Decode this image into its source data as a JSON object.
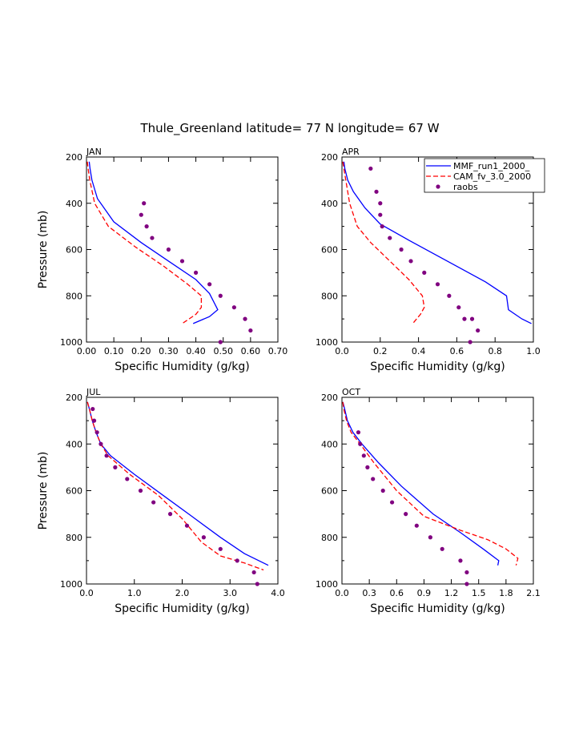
{
  "title": "Thule_Greenland  latitude= 77 N longitude= 67 W",
  "legend": {
    "placement": "top-right of APR panel",
    "entries": [
      {
        "label": "MMF_run1_2000_",
        "color": "#0000ff",
        "style": "solid"
      },
      {
        "label": "CAM_fv_3.0_2000",
        "color": "#ff0000",
        "style": "dashed"
      },
      {
        "label": "raobs",
        "color": "#800080",
        "style": "dots"
      }
    ]
  },
  "colors": {
    "mmf": "#0000ff",
    "cam": "#ff0000",
    "raobs": "#800080"
  },
  "chart_data": [
    {
      "type": "line",
      "label": "JAN",
      "xlabel": "Specific Humidity (g/kg)",
      "ylabel": "Pressure (mb)",
      "xlim": [
        0,
        0.7
      ],
      "ylim": [
        200,
        1000
      ],
      "xticks": [
        "0.00",
        "0.10",
        "0.20",
        "0.30",
        "0.40",
        "0.50",
        "0.60",
        "0.70"
      ],
      "yticks": [
        "200",
        "400",
        "600",
        "800",
        "1000"
      ],
      "series": [
        {
          "name": "MMF_run1_2000_",
          "style": "solid",
          "x": [
            0.01,
            0.013,
            0.02,
            0.04,
            0.1,
            0.2,
            0.3,
            0.4,
            0.45,
            0.48,
            0.45,
            0.39
          ],
          "y": [
            220,
            250,
            300,
            380,
            480,
            570,
            650,
            730,
            790,
            860,
            890,
            920
          ]
        },
        {
          "name": "CAM_fv_3.0_2000",
          "style": "dashed",
          "x": [
            0.003,
            0.006,
            0.012,
            0.03,
            0.08,
            0.18,
            0.28,
            0.37,
            0.42,
            0.42,
            0.4,
            0.35
          ],
          "y": [
            220,
            250,
            300,
            400,
            500,
            590,
            670,
            750,
            800,
            850,
            880,
            920
          ]
        },
        {
          "name": "raobs",
          "style": "dots",
          "x": [
            0.21,
            0.2,
            0.22,
            0.24,
            0.3,
            0.35,
            0.4,
            0.45,
            0.49,
            0.54,
            0.58,
            0.6,
            0.49
          ],
          "y": [
            400,
            450,
            500,
            550,
            600,
            650,
            700,
            750,
            800,
            850,
            900,
            950,
            1000
          ]
        }
      ]
    },
    {
      "type": "line",
      "label": "APR",
      "xlabel": "Specific Humidity (g/kg)",
      "ylabel": "",
      "xlim": [
        0,
        1.0
      ],
      "ylim": [
        200,
        1000
      ],
      "xticks": [
        "0.0",
        "0.2",
        "0.4",
        "0.6",
        "0.8",
        "1.0"
      ],
      "yticks": [
        "200",
        "400",
        "600",
        "800",
        "1000"
      ],
      "series": [
        {
          "name": "MMF_run1_2000_",
          "style": "solid",
          "x": [
            0.01,
            0.015,
            0.03,
            0.06,
            0.12,
            0.2,
            0.35,
            0.55,
            0.75,
            0.86,
            0.87,
            0.94,
            0.99
          ],
          "y": [
            220,
            250,
            300,
            350,
            420,
            490,
            560,
            650,
            740,
            800,
            860,
            900,
            920
          ]
        },
        {
          "name": "CAM_fv_3.0_2000",
          "style": "dashed",
          "x": [
            0.004,
            0.01,
            0.02,
            0.04,
            0.08,
            0.15,
            0.25,
            0.35,
            0.42,
            0.43,
            0.41,
            0.37
          ],
          "y": [
            220,
            250,
            300,
            400,
            500,
            570,
            650,
            730,
            800,
            850,
            880,
            920
          ]
        },
        {
          "name": "raobs",
          "style": "dots",
          "x": [
            0.15,
            0.18,
            0.2,
            0.2,
            0.21,
            0.25,
            0.31,
            0.36,
            0.43,
            0.5,
            0.56,
            0.61,
            0.64,
            0.68,
            0.71,
            0.67
          ],
          "y": [
            250,
            350,
            400,
            450,
            500,
            550,
            600,
            650,
            700,
            750,
            800,
            850,
            900,
            900,
            950,
            1000
          ]
        }
      ]
    },
    {
      "type": "line",
      "label": "JUL",
      "xlabel": "Specific Humidity (g/kg)",
      "ylabel": "Pressure (mb)",
      "xlim": [
        0,
        4.0
      ],
      "ylim": [
        200,
        1000
      ],
      "xticks": [
        "0.0",
        "1.0",
        "2.0",
        "3.0",
        "4.0"
      ],
      "yticks": [
        "200",
        "400",
        "600",
        "800",
        "1000"
      ],
      "series": [
        {
          "name": "MMF_run1_2000_",
          "style": "solid",
          "x": [
            0.02,
            0.06,
            0.12,
            0.2,
            0.3,
            0.5,
            1.0,
            1.6,
            2.2,
            2.8,
            3.3,
            3.8
          ],
          "y": [
            220,
            250,
            300,
            350,
            400,
            450,
            530,
            620,
            710,
            800,
            870,
            920
          ]
        },
        {
          "name": "CAM_fv_3.0_2000",
          "style": "dashed",
          "x": [
            0.02,
            0.06,
            0.12,
            0.2,
            0.3,
            0.45,
            0.9,
            1.5,
            2.0,
            2.4,
            2.8,
            3.3,
            3.7
          ],
          "y": [
            220,
            250,
            300,
            350,
            400,
            450,
            530,
            620,
            720,
            820,
            880,
            910,
            940
          ]
        },
        {
          "name": "raobs",
          "style": "dots",
          "x": [
            0.13,
            0.16,
            0.22,
            0.3,
            0.42,
            0.6,
            0.85,
            1.13,
            1.4,
            1.75,
            2.1,
            2.45,
            2.8,
            3.15,
            3.5,
            3.57
          ],
          "y": [
            250,
            300,
            350,
            400,
            450,
            500,
            550,
            600,
            650,
            700,
            750,
            800,
            850,
            900,
            950,
            1000
          ]
        }
      ]
    },
    {
      "type": "line",
      "label": "OCT",
      "xlabel": "Specific Humidity (g/kg)",
      "ylabel": "",
      "xlim": [
        0,
        2.1
      ],
      "ylim": [
        200,
        1000
      ],
      "xticks": [
        "0.0",
        "0.3",
        "0.6",
        "0.9",
        "1.2",
        "1.5",
        "1.8",
        "2.1"
      ],
      "yticks": [
        "200",
        "400",
        "600",
        "800",
        "1000"
      ],
      "series": [
        {
          "name": "MMF_run1_2000_",
          "style": "solid",
          "x": [
            0.01,
            0.03,
            0.06,
            0.12,
            0.22,
            0.4,
            0.65,
            1.0,
            1.3,
            1.55,
            1.72,
            1.71
          ],
          "y": [
            220,
            250,
            300,
            350,
            400,
            480,
            580,
            700,
            780,
            850,
            900,
            920
          ]
        },
        {
          "name": "CAM_fv_3.0_2000",
          "style": "dashed",
          "x": [
            0.01,
            0.02,
            0.05,
            0.1,
            0.2,
            0.35,
            0.6,
            0.9,
            1.3,
            1.6,
            1.8,
            1.93,
            1.91
          ],
          "y": [
            220,
            250,
            300,
            350,
            400,
            480,
            600,
            710,
            770,
            810,
            850,
            890,
            920
          ]
        },
        {
          "name": "raobs",
          "style": "dots",
          "x": [
            0.18,
            0.2,
            0.24,
            0.28,
            0.34,
            0.45,
            0.55,
            0.7,
            0.82,
            0.97,
            1.1,
            1.3,
            1.37,
            1.37
          ],
          "y": [
            350,
            400,
            450,
            500,
            550,
            600,
            650,
            700,
            750,
            800,
            850,
            900,
            950,
            1000
          ]
        }
      ]
    }
  ]
}
